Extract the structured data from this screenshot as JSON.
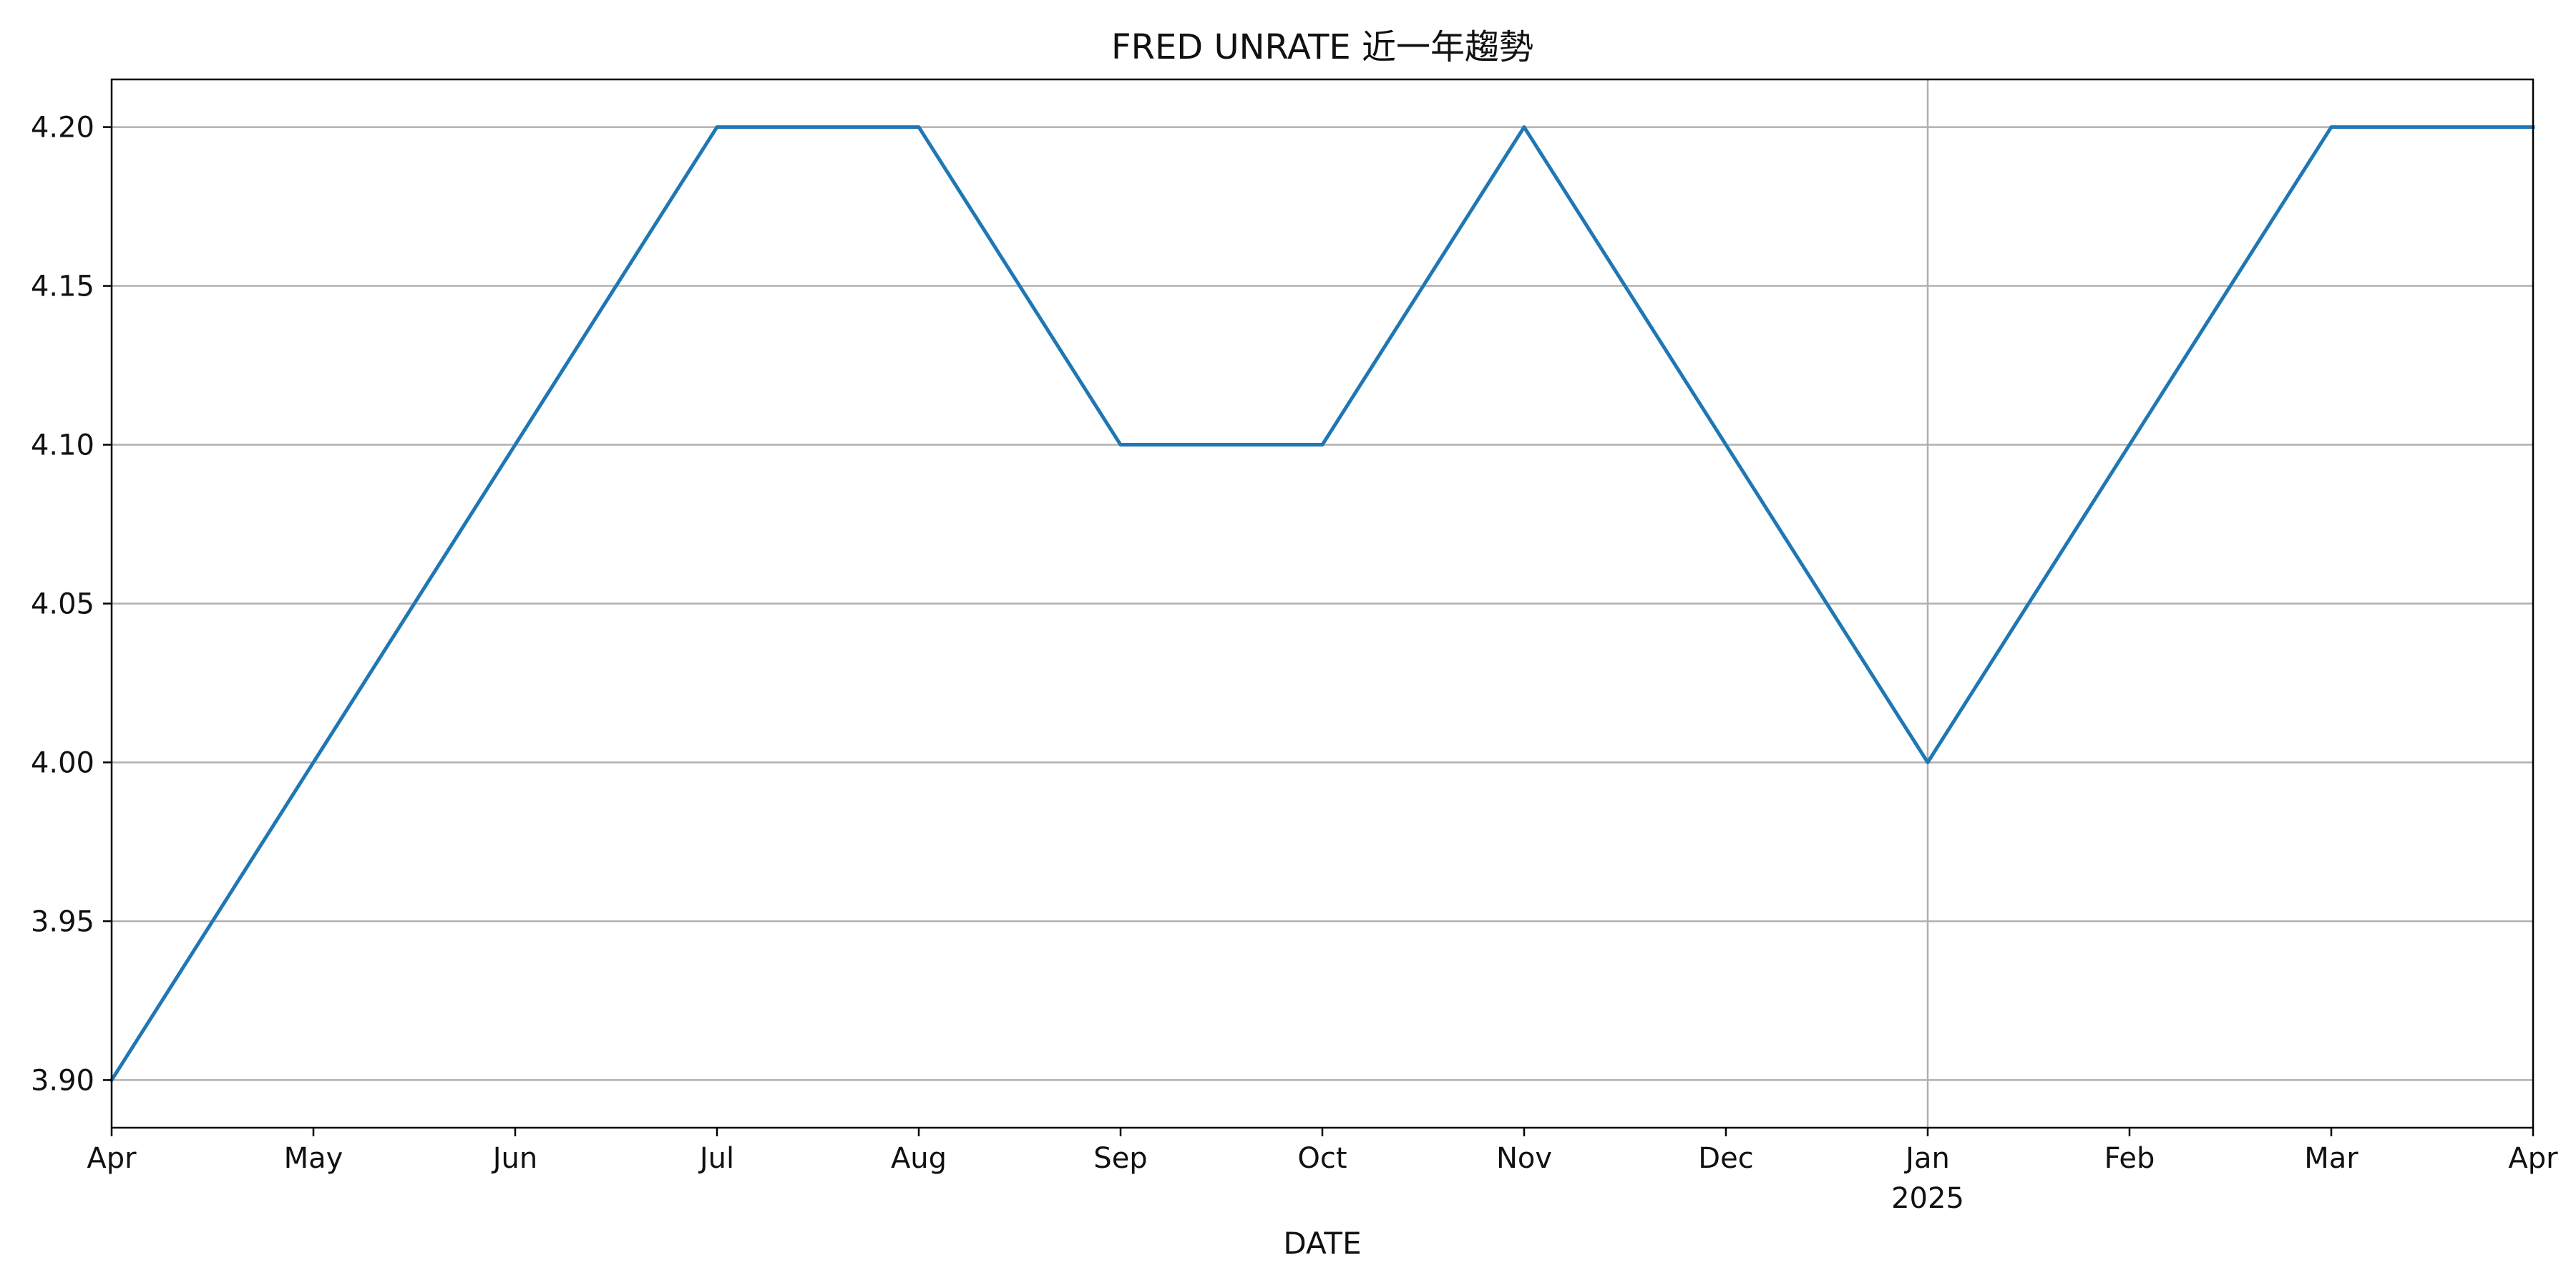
{
  "chart_data": {
    "type": "line",
    "title": "FRED UNRATE 近一年趨勢",
    "xlabel": "DATE",
    "ylabel": "",
    "x_ticks": [
      {
        "label": "Apr",
        "sublabel": ""
      },
      {
        "label": "May",
        "sublabel": ""
      },
      {
        "label": "Jun",
        "sublabel": ""
      },
      {
        "label": "Jul",
        "sublabel": ""
      },
      {
        "label": "Aug",
        "sublabel": ""
      },
      {
        "label": "Sep",
        "sublabel": ""
      },
      {
        "label": "Oct",
        "sublabel": ""
      },
      {
        "label": "Nov",
        "sublabel": ""
      },
      {
        "label": "Dec",
        "sublabel": ""
      },
      {
        "label": "Jan",
        "sublabel": "2025"
      },
      {
        "label": "Feb",
        "sublabel": ""
      },
      {
        "label": "Mar",
        "sublabel": ""
      },
      {
        "label": "Apr",
        "sublabel": ""
      }
    ],
    "y_ticks": [
      "3.90",
      "3.95",
      "4.00",
      "4.05",
      "4.10",
      "4.15",
      "4.20"
    ],
    "ylim": [
      3.885,
      4.215
    ],
    "x": [
      "2024-04-01",
      "2024-05-01",
      "2024-06-01",
      "2024-07-01",
      "2024-08-01",
      "2024-09-01",
      "2024-10-01",
      "2024-11-01",
      "2024-12-01",
      "2025-01-01",
      "2025-02-01",
      "2025-03-01",
      "2025-04-01"
    ],
    "series": [
      {
        "values": [
          3.9,
          4.0,
          4.1,
          4.2,
          4.2,
          4.1,
          4.1,
          4.2,
          4.1,
          4.0,
          4.1,
          4.2,
          4.2
        ],
        "color": "#1f77b4"
      }
    ],
    "grid": "horizontal-major; vertical at year boundary",
    "legend": "none"
  }
}
